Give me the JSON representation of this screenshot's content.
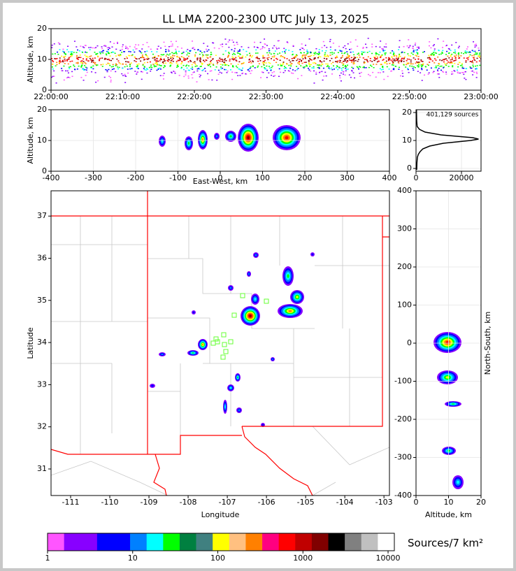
{
  "chart_data": [
    {
      "type": "density",
      "title": "LL LMA 2200-2300 UTC July 13, 2025",
      "ylabel": "Altitude, km",
      "xlim": [
        0,
        60
      ],
      "xticks": [
        {
          "value": 0,
          "label": "22:00:00"
        },
        {
          "value": 10,
          "label": "22:10:00"
        },
        {
          "value": 20,
          "label": "22:20:00"
        },
        {
          "value": 30,
          "label": "22:30:00"
        },
        {
          "value": 40,
          "label": "22:40:00"
        },
        {
          "value": 50,
          "label": "22:50:00"
        },
        {
          "value": 60,
          "label": "23:00:00"
        }
      ],
      "ylim": [
        0,
        20
      ],
      "yticks": [
        0,
        10,
        20
      ],
      "grid": false
    },
    {
      "type": "density",
      "ylabel": "Altitude, km",
      "xlabel": "East-West, km",
      "xlim": [
        -400,
        400
      ],
      "xticks": [
        -400,
        -300,
        -200,
        -100,
        0,
        100,
        200,
        300,
        400
      ],
      "ylim": [
        0,
        20
      ],
      "yticks": [
        0,
        10,
        20
      ],
      "grid": true
    },
    {
      "type": "line",
      "annotation": "401,129 sources",
      "xlim": [
        0,
        28600
      ],
      "xticks": [
        0,
        20000
      ],
      "ylim": [
        -1,
        21
      ],
      "yticks": [
        0,
        10,
        20
      ],
      "grid": true,
      "series": [
        {
          "color": "#000000",
          "x": [
            300,
            400,
            600,
            1000,
            1800,
            3000,
            6000,
            12000,
            18000,
            24000,
            27500,
            25000,
            18000,
            11000,
            4000,
            1500,
            500,
            300,
            200
          ],
          "values": [
            -0.5,
            2,
            4,
            5,
            6,
            7,
            8,
            9,
            9.5,
            10,
            10.5,
            11,
            11.5,
            12,
            13,
            14,
            15,
            17,
            21
          ]
        }
      ]
    },
    {
      "type": "map",
      "xlabel": "Longitude",
      "ylabel": "Latitude",
      "xlim": [
        -111.5,
        -102.86
      ],
      "xticks": [
        -111,
        -110,
        -109,
        -108,
        -107,
        -106,
        -105,
        -104,
        -103
      ],
      "ylim": [
        30.37,
        37.6
      ],
      "yticks": [
        31,
        32,
        33,
        34,
        35,
        36,
        37
      ],
      "grid": false,
      "border_color": "#ff0000"
    },
    {
      "type": "density",
      "xlabel": "Altitude, km",
      "ylabel": "North-South, km",
      "xlim": [
        0,
        20
      ],
      "xticks": [
        0,
        10,
        20
      ],
      "ylim": [
        -400,
        400
      ],
      "yticks": [
        -400,
        -300,
        -200,
        -100,
        0,
        100,
        200,
        300,
        400
      ],
      "grid": true
    },
    {
      "type": "colorbar",
      "label": "Sources/7 km²",
      "log": true,
      "xlim": [
        1,
        11850
      ],
      "xticks": [
        1,
        10,
        100,
        1000,
        10000
      ],
      "colors": [
        "#ff55ff",
        "#8800ff",
        "#8800ff",
        "#0000ff",
        "#0000ff",
        "#0080ff",
        "#00ffff",
        "#00ff00",
        "#008040",
        "#408080",
        "#ffff00",
        "#ffc080",
        "#ff8000",
        "#ff0080",
        "#ff0000",
        "#c00000",
        "#800000",
        "#000000",
        "#808080",
        "#c0c0c0",
        "#ffffff"
      ]
    }
  ]
}
